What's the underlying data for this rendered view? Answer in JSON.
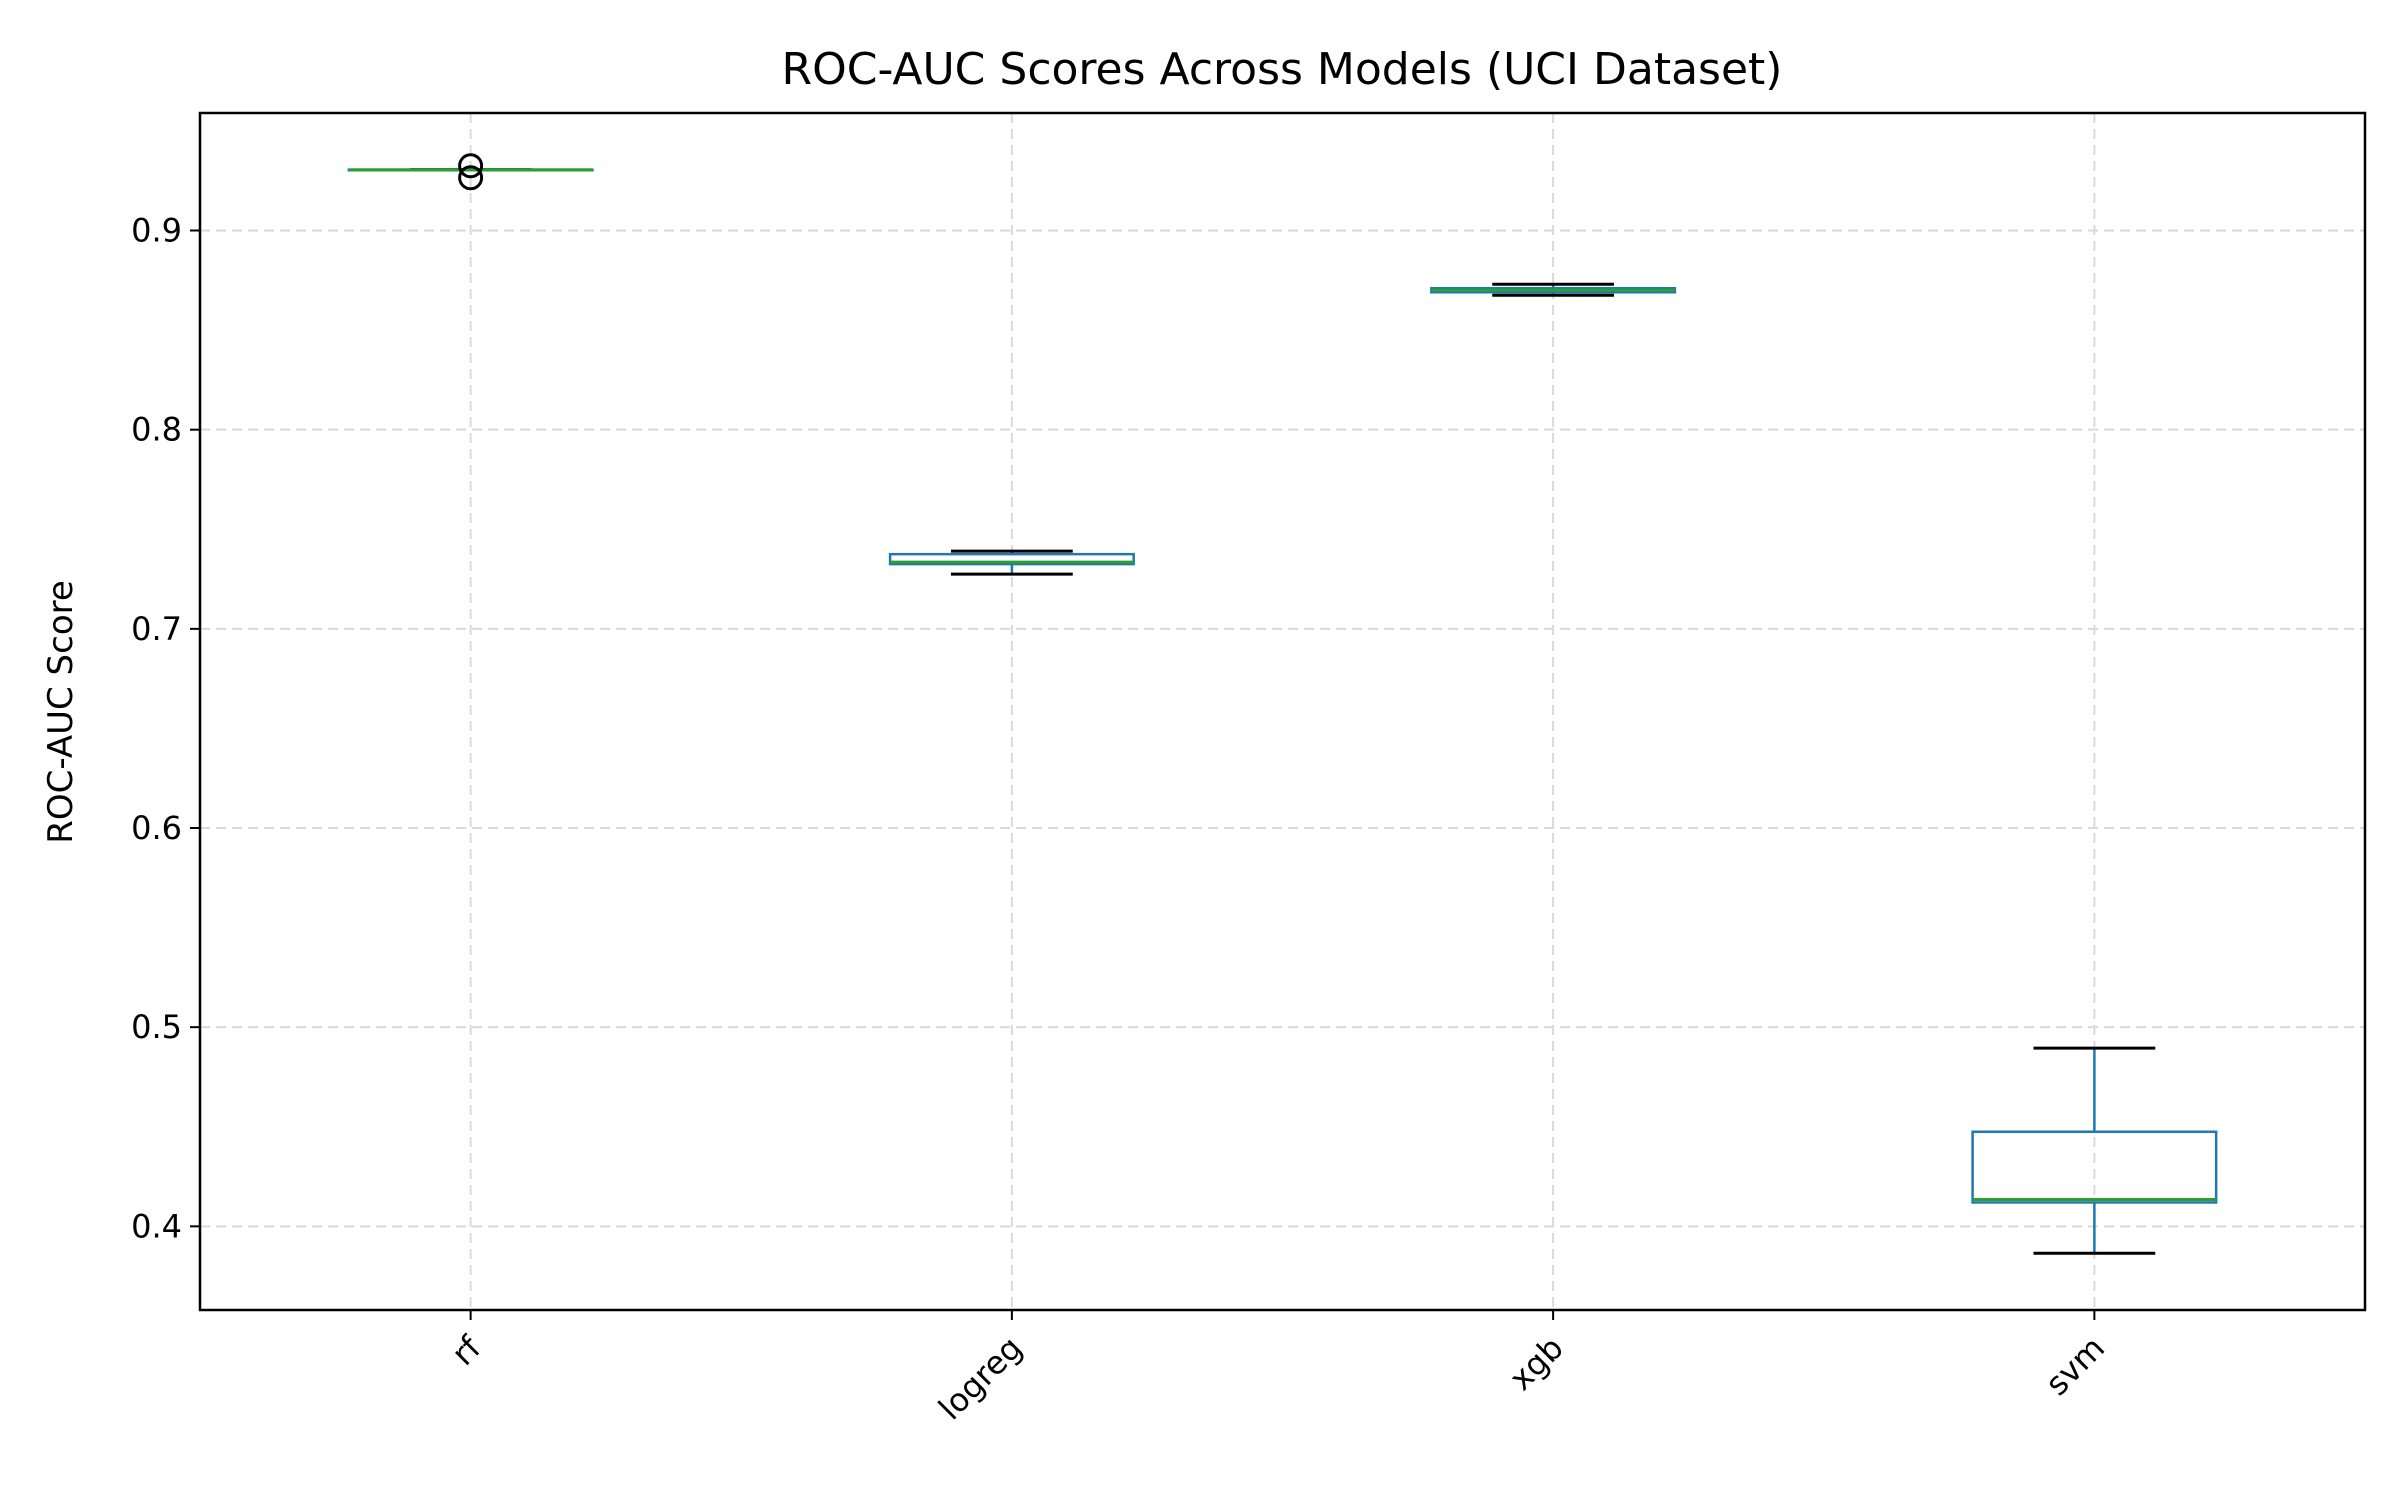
{
  "chart_data": {
    "type": "boxplot",
    "title": "ROC-AUC Scores Across Models (UCI Dataset)",
    "xlabel": "",
    "ylabel": "ROC-AUC Score",
    "ylim": [
      0.358,
      0.959
    ],
    "yticks": [
      0.4,
      0.5,
      0.6,
      0.7,
      0.8,
      0.9
    ],
    "ytick_labels": [
      "0.4",
      "0.5",
      "0.6",
      "0.7",
      "0.8",
      "0.9"
    ],
    "grid": true,
    "categories": [
      "rf",
      "logreg",
      "xgb",
      "svm"
    ],
    "boxes": [
      {
        "name": "rf",
        "whislo": 0.9305,
        "q1": 0.9305,
        "med": 0.9305,
        "q3": 0.9305,
        "whishi": 0.9305,
        "fliers": [
          0.9265,
          0.9325
        ]
      },
      {
        "name": "logreg",
        "whislo": 0.7275,
        "q1": 0.7325,
        "med": 0.7335,
        "q3": 0.7375,
        "whishi": 0.739,
        "fliers": []
      },
      {
        "name": "xgb",
        "whislo": 0.8675,
        "q1": 0.869,
        "med": 0.87,
        "q3": 0.871,
        "whishi": 0.873,
        "fliers": []
      },
      {
        "name": "svm",
        "whislo": 0.3865,
        "q1": 0.412,
        "med": 0.4135,
        "q3": 0.4475,
        "whishi": 0.4895,
        "fliers": []
      }
    ],
    "colors": {
      "box": "#1f77b4",
      "median": "#2ca02c",
      "whisker_cap": "#000000",
      "grid": "#d9d9d9"
    }
  }
}
